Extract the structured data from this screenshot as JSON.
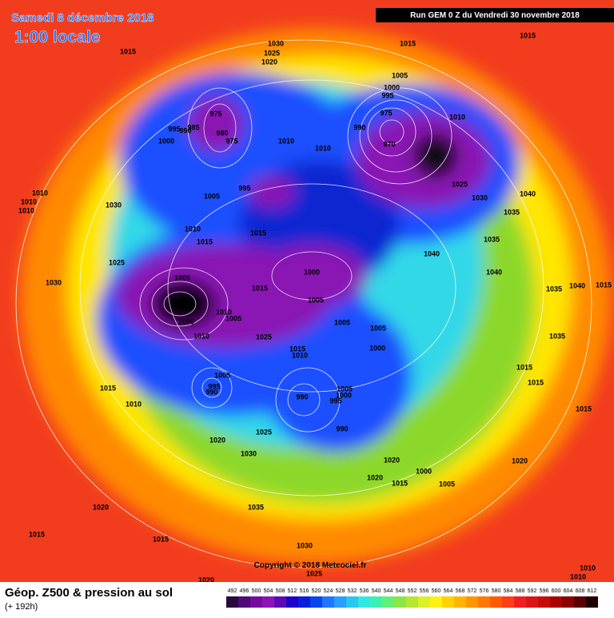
{
  "header": {
    "date": "Samedi 8 décembre 2018",
    "time": "1:00 locale",
    "run": "Run GEM 0 Z du Vendredi 30 novembre 2018"
  },
  "footer": {
    "title": "Géop. Z500 & pression au sol",
    "lead": "(+ 192h)",
    "copyright": "Copyright © 2018 Meteociel.fr"
  },
  "scale": {
    "levels": [
      492,
      496,
      500,
      504,
      508,
      512,
      516,
      520,
      524,
      528,
      532,
      536,
      540,
      544,
      548,
      552,
      556,
      560,
      564,
      568,
      572,
      576,
      580,
      584,
      588,
      592,
      596,
      600,
      604,
      608,
      612
    ],
    "colors": [
      "#2a0a3c",
      "#500a78",
      "#780aa0",
      "#8c14b4",
      "#5a0ab4",
      "#1e00c8",
      "#0a1edc",
      "#0a46f0",
      "#1e78ff",
      "#28a0ff",
      "#28c8f0",
      "#32e6e6",
      "#3cf0b4",
      "#64f078",
      "#8ce646",
      "#b4e632",
      "#dcf028",
      "#fff014",
      "#ffd200",
      "#ffb400",
      "#ff9600",
      "#ff7800",
      "#ff5a00",
      "#ff3c14",
      "#f01e1e",
      "#dc1414",
      "#c80a0a",
      "#aa0000",
      "#8c0000",
      "#5a0000",
      "#1e0000"
    ]
  },
  "pressure_labels": [
    1030,
    1025,
    1020,
    1015,
    1015,
    1015,
    1005,
    1000,
    995,
    975,
    985,
    990,
    995,
    980,
    975,
    1000,
    1010,
    1010,
    990,
    975,
    970,
    1010,
    1025,
    1030,
    1040,
    1035,
    1035,
    1040,
    1040,
    1035,
    1040,
    1015,
    1035,
    1015,
    1015,
    1015,
    1020,
    1010,
    1010,
    995,
    1005,
    1010,
    1010,
    1010,
    1030,
    1010,
    1015,
    1015,
    1025,
    1030,
    1005,
    995,
    1000,
    1010,
    1005,
    1010,
    1015,
    1000,
    1005,
    1005,
    1005,
    1000,
    1025,
    1015,
    1010,
    1005,
    995,
    990,
    1015,
    1010,
    990,
    1005,
    1000,
    995,
    990,
    1025,
    1020,
    1030,
    1020,
    1020,
    1015,
    1000,
    1005,
    1020,
    1035,
    1015,
    1015,
    1030,
    1025,
    1020
  ]
}
